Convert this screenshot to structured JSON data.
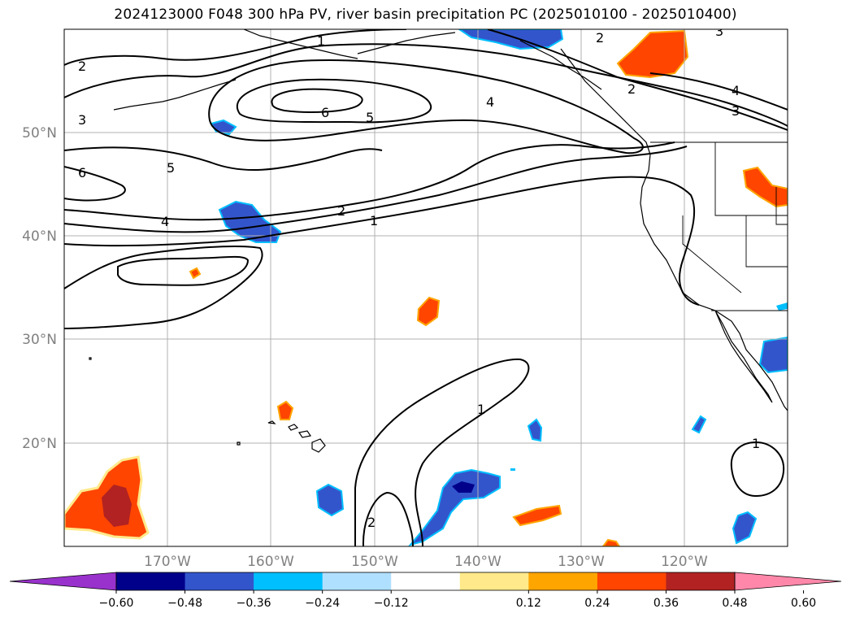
{
  "title": "2024123000 F048 300 hPa PV, river basin precipitation PC (2025010100 - 2025010400)",
  "map": {
    "lat_labels": [
      {
        "lat": 50,
        "text": "50°N"
      },
      {
        "lat": 40,
        "text": "40°N"
      },
      {
        "lat": 30,
        "text": "30°N"
      },
      {
        "lat": 20,
        "text": "20°N"
      }
    ],
    "lon_labels": [
      {
        "lon": -170,
        "text": "170°W"
      },
      {
        "lon": -160,
        "text": "160°W"
      },
      {
        "lon": -150,
        "text": "150°W"
      },
      {
        "lon": -140,
        "text": "140°W"
      },
      {
        "lon": -130,
        "text": "130°W"
      },
      {
        "lon": -120,
        "text": "120°W"
      }
    ],
    "contour_labels": [
      "1",
      "2",
      "3",
      "4",
      "5",
      "6"
    ],
    "colorbar": {
      "ticks": [
        "−0.60",
        "−0.48",
        "−0.36",
        "−0.24",
        "−0.12",
        "0.12",
        "0.24",
        "0.36",
        "0.48",
        "0.60"
      ],
      "colors": [
        "#9932cc",
        "#00008b",
        "#3355cc",
        "#00bfff",
        "#b0e0ff",
        "#ffffff",
        "#ffe98a",
        "#ffa500",
        "#ff4500",
        "#b22222",
        "#ff88aa"
      ]
    }
  }
}
